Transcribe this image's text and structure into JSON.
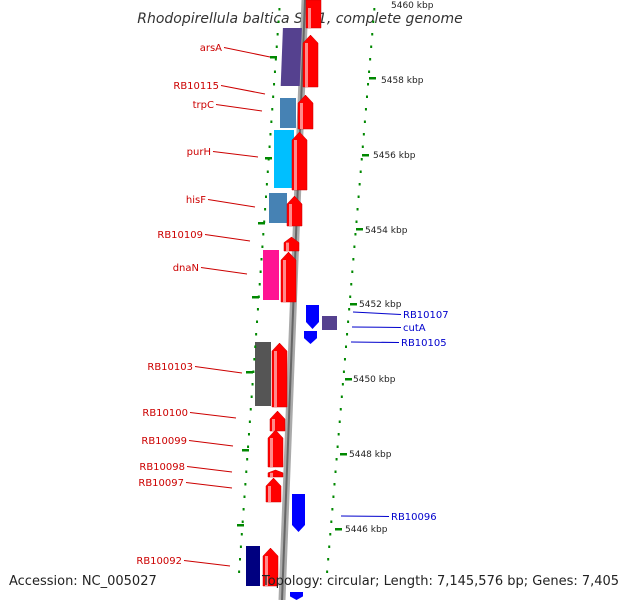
{
  "title": "Rhodopirellula baltica SH 1, complete genome",
  "footer": {
    "accession": "Accession: NC_005027",
    "summary": "Topology: circular; Length: 7,145,576 bp; Genes: 7,405"
  },
  "colors": {
    "forward_gene": "#ff0000",
    "reverse_gene_label": "#cc0000",
    "forward_gene_label": "#0000cc",
    "reverse_gene": "#0000ff",
    "tick": "#008800",
    "backbone": "#999999"
  },
  "scale_labels": [
    {
      "text": "5460 kbp",
      "kbp": 5460
    },
    {
      "text": "5458 kbp",
      "kbp": 5458
    },
    {
      "text": "5456 kbp",
      "kbp": 5456
    },
    {
      "text": "5454 kbp",
      "kbp": 5454
    },
    {
      "text": "5452 kbp",
      "kbp": 5452
    },
    {
      "text": "5450 kbp",
      "kbp": 5450
    },
    {
      "text": "5448 kbp",
      "kbp": 5448
    },
    {
      "text": "5446 kbp",
      "kbp": 5446
    }
  ],
  "left_labels": [
    "arsA",
    "RB10115",
    "trpC",
    "purH",
    "hisF",
    "RB10109",
    "dnaN",
    "RB10103",
    "RB10100",
    "RB10099",
    "RB10098",
    "RB10097",
    "RB10092"
  ],
  "right_labels": [
    "RB10107",
    "cutA",
    "RB10105",
    "RB10096"
  ]
}
